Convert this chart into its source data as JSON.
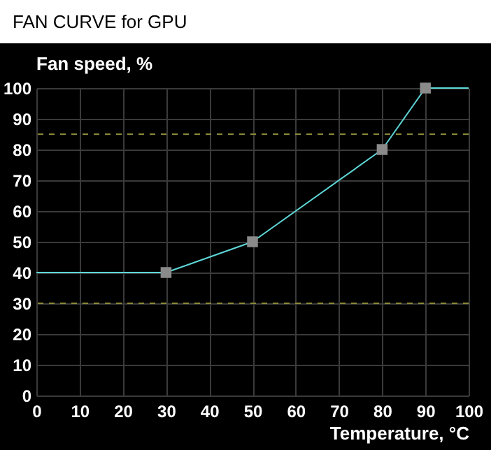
{
  "chart_data": {
    "type": "line",
    "title": "FAN CURVE for GPU",
    "xlabel": "Temperature, °C",
    "ylabel": "Fan speed, %",
    "xlim": [
      0,
      100
    ],
    "xticks": [
      0,
      10,
      20,
      30,
      40,
      50,
      60,
      70,
      80,
      90,
      100
    ],
    "ylim": [
      0,
      100
    ],
    "yticks": [
      0,
      10,
      20,
      30,
      40,
      50,
      60,
      70,
      80,
      90,
      100
    ],
    "grid": true,
    "series": [
      {
        "color": "#5fd8d8",
        "marker": "none",
        "x": [
          0,
          30,
          50,
          80,
          90,
          100
        ],
        "values": [
          40,
          40,
          50,
          80,
          100,
          100
        ]
      },
      {
        "type": "scatter",
        "color": "#8a8a8a",
        "marker": "square",
        "x": [
          30,
          50,
          80,
          90
        ],
        "values": [
          40,
          50,
          80,
          100
        ]
      }
    ],
    "ref_lines": [
      {
        "axis": "y",
        "value": 85,
        "color": "#8a8a3a",
        "line_style": "dashed"
      },
      {
        "axis": "y",
        "value": 30,
        "color": "#8a8a3a",
        "line_style": "dashed"
      }
    ]
  }
}
